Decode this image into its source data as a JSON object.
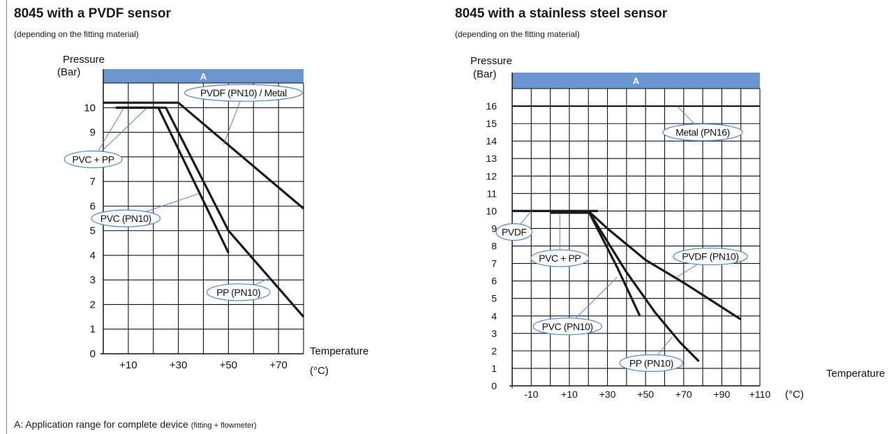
{
  "colors": {
    "band": "#6b96cf",
    "grid": "#111111",
    "curve": "#1a1a1a",
    "callout": "#4f86c6",
    "band_text": "#ffffff"
  },
  "footnote": {
    "text": "A: Application range for complete device ",
    "small": "(fitting + flowmeter)"
  },
  "chart_data": [
    {
      "type": "line",
      "title": "8045 with a PVDF sensor",
      "subtitle": "(depending on the fitting material)",
      "ylabel": "Pressure",
      "yunit": "(Bar)",
      "xlabel": "Temperature",
      "xunit": "(°C)",
      "xlim": [
        0,
        80
      ],
      "ylim": [
        0,
        11
      ],
      "x_ticks": [
        10,
        30,
        50,
        70
      ],
      "x_tick_labels": [
        "+10",
        "+30",
        "+50",
        "+70"
      ],
      "y_ticks": [
        0,
        1,
        2,
        3,
        4,
        5,
        6,
        7,
        8,
        9,
        10
      ],
      "y_tick_labels": [
        "0",
        "1",
        "2",
        "3",
        "4",
        "5",
        "6",
        "7",
        "8",
        "9",
        "10"
      ],
      "band_label": "A",
      "series": [
        {
          "name": "PVDF (PN10) / Metal",
          "points": [
            [
              0,
              10.2
            ],
            [
              30,
              10.2
            ],
            [
              80,
              5.9
            ]
          ]
        },
        {
          "name": "PVC (PN10)",
          "points": [
            [
              5,
              10
            ],
            [
              22,
              10
            ],
            [
              50,
              4.1
            ]
          ]
        },
        {
          "name": "PP (PN10)",
          "points": [
            [
              5,
              10
            ],
            [
              25,
              10
            ],
            [
              50,
              5
            ],
            [
              80,
              1.5
            ]
          ]
        }
      ],
      "callouts": [
        {
          "text": "PVC + PP",
          "at": [
            -4,
            7.9
          ],
          "to": [
            [
              8,
              9.95
            ],
            [
              17,
              9.95
            ]
          ]
        },
        {
          "text": "PVDF (PN10) / Metal",
          "at": [
            56,
            10.6
          ],
          "to": [
            [
              48,
              8.5
            ]
          ]
        },
        {
          "text": "PVC (PN10)",
          "at": [
            9,
            5.5
          ],
          "to": [
            [
              38,
              6.5
            ]
          ]
        },
        {
          "text": "PP (PN10)",
          "at": [
            54,
            2.5
          ],
          "to": [
            [
              67,
              3.1
            ]
          ]
        }
      ]
    },
    {
      "type": "line",
      "title": "8045 with a stainless steel sensor",
      "subtitle": "(depending on the fitting material)",
      "ylabel": "Pressure",
      "yunit": "(Bar)",
      "xlabel": "Temperature",
      "xunit": "(°C)",
      "xlim": [
        -20,
        110
      ],
      "ylim": [
        0,
        17
      ],
      "x_ticks": [
        -10,
        10,
        30,
        50,
        70,
        90,
        110
      ],
      "x_tick_labels": [
        "-10",
        "+10",
        "+30",
        "+50",
        "+70",
        "+90",
        "+110"
      ],
      "y_ticks": [
        0,
        1,
        2,
        3,
        4,
        5,
        6,
        7,
        8,
        9,
        10,
        11,
        12,
        13,
        14,
        15,
        16
      ],
      "y_tick_labels": [
        "0",
        "1",
        "2",
        "3",
        "4",
        "5",
        "6",
        "7",
        "8",
        "9",
        "10",
        "11",
        "12",
        "13",
        "14",
        "15",
        "16"
      ],
      "band_label": "A",
      "series": [
        {
          "name": "Metal (PN16)",
          "points": [
            [
              -20,
              16
            ],
            [
              110,
              16
            ]
          ]
        },
        {
          "name": "PVDF",
          "points": [
            [
              -20,
              10
            ],
            [
              25,
              10
            ]
          ]
        },
        {
          "name": "PVC + PP",
          "points": [
            [
              0,
              9.9
            ],
            [
              20,
              9.9
            ]
          ]
        },
        {
          "name": "PVDF (PN10)",
          "points": [
            [
              20,
              10
            ],
            [
              30,
              9
            ],
            [
              50,
              7.2
            ],
            [
              70,
              5.9
            ],
            [
              100,
              3.8
            ]
          ]
        },
        {
          "name": "PVC (PN10)",
          "points": [
            [
              20,
              10
            ],
            [
              35,
              6.8
            ],
            [
              47,
              4
            ]
          ]
        },
        {
          "name": "PP (PN10)",
          "points": [
            [
              20,
              10
            ],
            [
              40,
              6.5
            ],
            [
              55,
              4.2
            ],
            [
              68,
              2.5
            ],
            [
              78,
              1.4
            ]
          ]
        }
      ],
      "callouts": [
        {
          "text": "Metal (PN16)",
          "at": [
            80,
            14.5
          ],
          "to": [
            [
              67,
              15.95
            ]
          ]
        },
        {
          "text": "PVDF",
          "at": [
            -19,
            8.8
          ],
          "to": [
            [
              -10,
              10
            ]
          ]
        },
        {
          "text": "PVC + PP",
          "at": [
            5,
            7.3
          ],
          "to": [
            [
              5,
              9.8
            ]
          ]
        },
        {
          "text": "PVDF (PN10)",
          "at": [
            84,
            7.4
          ],
          "to": [
            [
              66,
              6.2
            ]
          ]
        },
        {
          "text": "PVC (PN10)",
          "at": [
            9,
            3.4
          ],
          "to": [
            [
              35,
              6.2
            ]
          ]
        },
        {
          "text": "PP (PN10)",
          "at": [
            53,
            1.3
          ],
          "to": [
            [
              64,
              2.8
            ]
          ]
        }
      ]
    }
  ]
}
